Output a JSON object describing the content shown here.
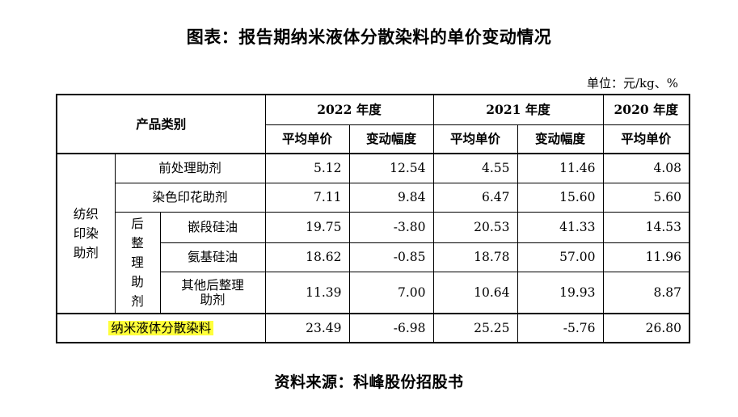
{
  "title": "图表：报告期纳米液体分散染料的单价变动情况",
  "unit": "单位：元/kg、%",
  "table": {
    "category_header": "产品类别",
    "years": [
      "2022 年度",
      "2021 年度",
      "2020 年度"
    ],
    "sub_price": "平均单价",
    "sub_change": "变动幅度",
    "group_label": "纺织印染助剂",
    "sub_group_label": "后整理助剂",
    "rows": [
      {
        "name": "前处理助剂",
        "v2022": "5.12",
        "c2022": "12.54",
        "v2021": "4.55",
        "c2021": "11.46",
        "v2020": "4.08"
      },
      {
        "name": "染色印花助剂",
        "v2022": "7.11",
        "c2022": "9.84",
        "v2021": "6.47",
        "c2021": "15.60",
        "v2020": "5.60"
      },
      {
        "name": "嵌段硅油",
        "v2022": "19.75",
        "c2022": "-3.80",
        "v2021": "20.53",
        "c2021": "41.33",
        "v2020": "14.53"
      },
      {
        "name": "氨基硅油",
        "v2022": "18.62",
        "c2022": "-0.85",
        "v2021": "18.78",
        "c2021": "57.00",
        "v2020": "11.96"
      },
      {
        "name": "其他后整理助剂",
        "v2022": "11.39",
        "c2022": "7.00",
        "v2021": "10.64",
        "c2021": "19.93",
        "v2020": "8.87"
      }
    ],
    "total_row": {
      "name": "纳米液体分散染料",
      "v2022": "23.49",
      "c2022": "-6.98",
      "v2021": "25.25",
      "c2021": "-5.76",
      "v2020": "26.80"
    }
  },
  "source": "资料来源：科峰股份招股书",
  "colors": {
    "highlight": "#ffff3a"
  }
}
